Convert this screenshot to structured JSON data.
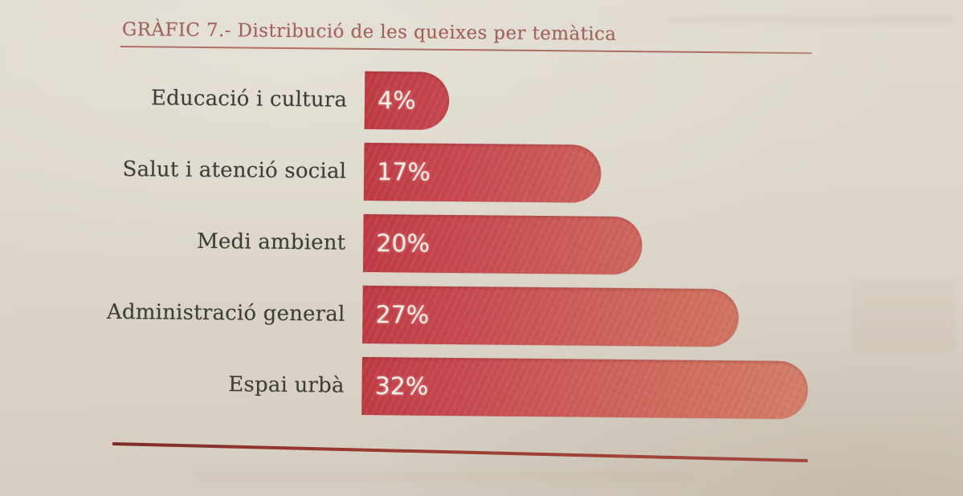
{
  "chart_data": {
    "type": "bar",
    "orientation": "horizontal",
    "title": "GRÀFIC 7.- Distribució de les queixes per temàtica",
    "categories": [
      "Educació i cultura",
      "Salut i atenció social",
      "Medi ambient",
      "Administració general",
      "Espai urbà"
    ],
    "values": [
      4,
      17,
      20,
      27,
      32
    ],
    "value_labels": [
      "4%",
      "17%",
      "20%",
      "27%",
      "32%"
    ],
    "unit": "%",
    "xlim": [
      0,
      32
    ],
    "grid": false,
    "legend": false,
    "colors": {
      "bar_dark": "#be3a43",
      "bar_light": "#d27e69",
      "value_text": "#f4ede3",
      "category_text": "#3f3d36",
      "title_text": "#a2635a",
      "rule": "#993831",
      "paper": "#ddd7cb"
    }
  }
}
